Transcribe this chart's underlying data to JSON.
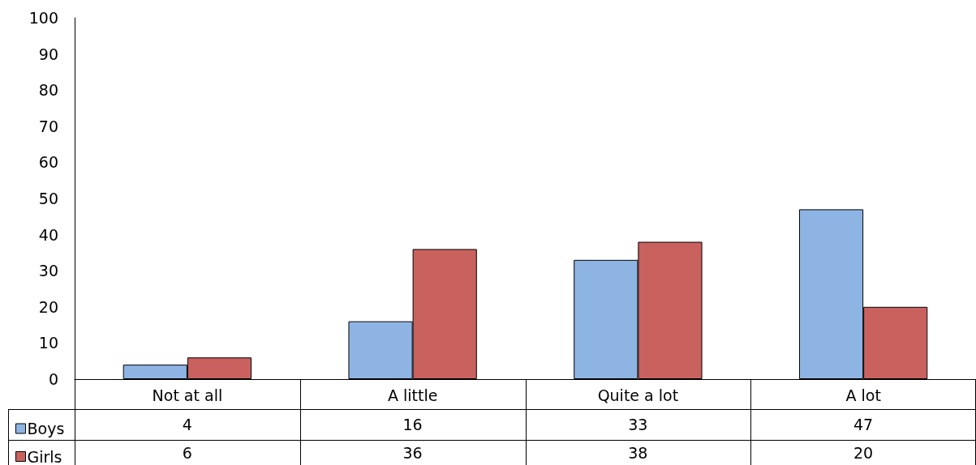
{
  "chart_data": {
    "type": "bar",
    "categories": [
      "Not at all",
      "A little",
      "Quite a lot",
      "A lot"
    ],
    "series": [
      {
        "name": "Boys",
        "color": "#8eb4e3",
        "values": [
          4,
          16,
          33,
          47
        ]
      },
      {
        "name": "Girls",
        "color": "#c9625f",
        "values": [
          6,
          36,
          38,
          20
        ]
      }
    ],
    "ylim": [
      0,
      100
    ],
    "yticks": [
      0,
      10,
      20,
      30,
      40,
      50,
      60,
      70,
      80,
      90,
      100
    ],
    "grid": false,
    "legend": "bottom left",
    "data_labels": true
  }
}
